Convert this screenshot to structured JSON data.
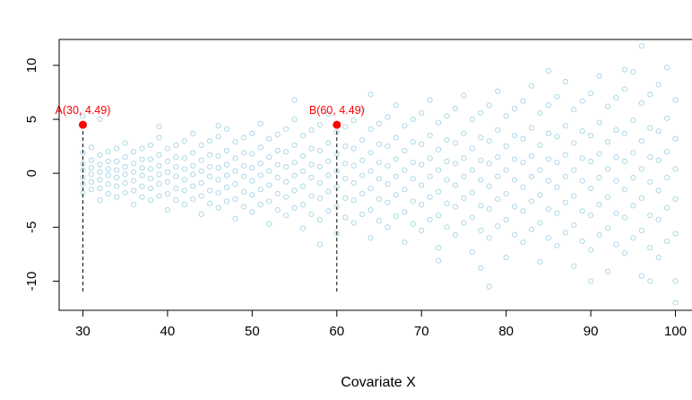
{
  "chart_data": {
    "type": "scatter",
    "title": "",
    "xlabel": "Covariate X",
    "ylabel": "",
    "xlim": [
      27.2,
      102.8
    ],
    "ylim": [
      -12.7,
      12.4
    ],
    "xticks": [
      30,
      40,
      50,
      60,
      70,
      80,
      90,
      100
    ],
    "yticks": [
      -10,
      -5,
      0,
      5,
      10
    ],
    "grid": false,
    "point_color": "#add8e6",
    "marker": "open-circle",
    "points": [
      {
        "x": 30,
        "y": [
          -1.8,
          -1.0,
          -0.4,
          0.3,
          0.9,
          1.9,
          5.3
        ]
      },
      {
        "x": 31,
        "y": [
          -1.5,
          -0.8,
          -0.1,
          0.5,
          1.2,
          2.4
        ]
      },
      {
        "x": 32,
        "y": [
          -2.5,
          -1.4,
          -0.6,
          0.1,
          0.8,
          1.7,
          5.0
        ]
      },
      {
        "x": 33,
        "y": [
          -1.9,
          -1.0,
          -0.2,
          0.4,
          1.1,
          2.0
        ]
      },
      {
        "x": 34,
        "y": [
          -2.2,
          -1.2,
          -0.4,
          0.3,
          1.1,
          2.3
        ]
      },
      {
        "x": 35,
        "y": [
          -1.8,
          -0.9,
          -0.1,
          0.6,
          1.5,
          2.8
        ]
      },
      {
        "x": 36,
        "y": [
          -2.9,
          -1.6,
          -0.7,
          0.1,
          0.9,
          2.0
        ]
      },
      {
        "x": 37,
        "y": [
          -2.2,
          -1.2,
          -0.2,
          0.5,
          1.3,
          2.3
        ]
      },
      {
        "x": 38,
        "y": [
          -2.5,
          -1.4,
          -0.5,
          0.4,
          1.3,
          2.6
        ]
      },
      {
        "x": 39,
        "y": [
          -2.1,
          -1.0,
          -0.1,
          0.7,
          1.7,
          3.3,
          4.3
        ]
      },
      {
        "x": 40,
        "y": [
          -3.4,
          -1.9,
          -0.8,
          0.1,
          1.1,
          2.3
        ]
      },
      {
        "x": 41,
        "y": [
          -2.5,
          -1.4,
          -0.3,
          0.6,
          1.5,
          2.6
        ]
      },
      {
        "x": 42,
        "y": [
          -2.9,
          -1.6,
          -0.6,
          0.4,
          1.4,
          3.0
        ]
      },
      {
        "x": 43,
        "y": [
          -2.4,
          -1.2,
          -0.1,
          0.7,
          1.9,
          3.7
        ]
      },
      {
        "x": 44,
        "y": [
          -3.8,
          -2.1,
          -0.9,
          0.2,
          1.2,
          2.6
        ]
      },
      {
        "x": 45,
        "y": [
          -2.8,
          -1.6,
          -0.3,
          0.6,
          1.7,
          3.0
        ]
      },
      {
        "x": 46,
        "y": [
          -3.2,
          -1.8,
          -0.6,
          0.5,
          1.6,
          3.4,
          4.4
        ]
      },
      {
        "x": 47,
        "y": [
          -2.6,
          -1.3,
          -0.2,
          0.8,
          2.1,
          4.1
        ]
      },
      {
        "x": 48,
        "y": [
          -4.2,
          -2.4,
          -1.0,
          0.2,
          1.4,
          2.9
        ]
      },
      {
        "x": 49,
        "y": [
          -3.1,
          -1.7,
          -0.3,
          0.7,
          1.9,
          3.3
        ]
      },
      {
        "x": 50,
        "y": [
          -3.6,
          -2.0,
          -0.7,
          0.5,
          1.8,
          3.7
        ]
      },
      {
        "x": 51,
        "y": [
          -2.9,
          -1.5,
          -0.2,
          0.9,
          2.4,
          4.6
        ]
      },
      {
        "x": 52,
        "y": [
          -4.7,
          -2.6,
          -1.1,
          0.2,
          1.5,
          3.2
        ]
      },
      {
        "x": 53,
        "y": [
          -3.4,
          -1.9,
          -0.4,
          0.8,
          2.1,
          3.6
        ]
      },
      {
        "x": 54,
        "y": [
          -3.9,
          -2.2,
          -0.8,
          0.6,
          2.0,
          4.1
        ]
      },
      {
        "x": 55,
        "y": [
          -3.2,
          -1.6,
          -0.2,
          1.0,
          2.6,
          5.0,
          6.8
        ]
      },
      {
        "x": 56,
        "y": [
          -5.1,
          -2.9,
          -1.2,
          0.2,
          1.6,
          3.5
        ]
      },
      {
        "x": 57,
        "y": [
          -3.8,
          -2.1,
          -0.4,
          0.8,
          2.3,
          4.0
        ]
      },
      {
        "x": 58,
        "y": [
          -4.3,
          -2.3,
          -0.9,
          0.6,
          2.1,
          4.5,
          -6.6
        ]
      },
      {
        "x": 59,
        "y": [
          -3.5,
          -1.7,
          -0.2,
          1.1,
          2.8,
          5.5
        ]
      },
      {
        "x": 60,
        "y": [
          -5.6,
          -3.1,
          -1.3,
          0.2,
          1.8,
          3.8
        ]
      },
      {
        "x": 61,
        "y": [
          -4.1,
          -2.3,
          -0.5,
          0.9,
          2.5,
          4.3
        ]
      },
      {
        "x": 62,
        "y": [
          -4.6,
          -2.5,
          -0.9,
          0.7,
          2.3,
          4.9
        ]
      },
      {
        "x": 63,
        "y": [
          -3.8,
          -1.9,
          -0.2,
          1.2,
          3.1,
          5.9
        ]
      },
      {
        "x": 64,
        "y": [
          -6.0,
          -3.4,
          -1.4,
          0.2,
          1.9,
          4.1,
          7.3
        ]
      },
      {
        "x": 65,
        "y": [
          -4.4,
          -2.4,
          -0.5,
          1.0,
          2.7,
          4.6
        ]
      },
      {
        "x": 66,
        "y": [
          -5.0,
          -2.7,
          -1.0,
          0.7,
          2.5,
          5.2
        ]
      },
      {
        "x": 67,
        "y": [
          -4.0,
          -2.0,
          -0.3,
          1.3,
          3.3,
          6.3
        ]
      },
      {
        "x": 68,
        "y": [
          -6.4,
          -3.6,
          -1.5,
          0.3,
          2.1,
          4.4
        ]
      },
      {
        "x": 69,
        "y": [
          -4.7,
          -2.6,
          -0.5,
          1.0,
          2.9,
          5.0
        ]
      },
      {
        "x": 70,
        "y": [
          -5.3,
          -2.9,
          -1.1,
          0.8,
          2.7,
          5.6
        ]
      },
      {
        "x": 71,
        "y": [
          -4.3,
          -2.2,
          -0.3,
          1.4,
          3.5,
          6.8
        ]
      },
      {
        "x": 72,
        "y": [
          -6.9,
          -3.9,
          -1.7,
          0.3,
          2.2,
          4.7,
          -8.1
        ]
      },
      {
        "x": 73,
        "y": [
          -5.0,
          -2.8,
          -0.6,
          1.1,
          3.1,
          5.3
        ]
      },
      {
        "x": 74,
        "y": [
          -5.7,
          -3.1,
          -1.1,
          0.9,
          2.8,
          6.0
        ]
      },
      {
        "x": 75,
        "y": [
          -4.6,
          -2.3,
          -0.3,
          1.4,
          3.7,
          7.2
        ]
      },
      {
        "x": 76,
        "y": [
          -7.3,
          -4.1,
          -1.8,
          0.3,
          2.3,
          5.0
        ]
      },
      {
        "x": 77,
        "y": [
          -5.3,
          -3.0,
          -0.6,
          1.2,
          3.3,
          5.6,
          -8.8
        ]
      },
      {
        "x": 78,
        "y": [
          -6.0,
          -3.3,
          -1.2,
          0.9,
          3.0,
          6.3,
          -10.5
        ]
      },
      {
        "x": 79,
        "y": [
          -4.9,
          -2.4,
          -0.3,
          1.5,
          4.0,
          7.6
        ]
      },
      {
        "x": 80,
        "y": [
          -7.8,
          -4.3,
          -1.9,
          0.3,
          2.5,
          5.3
        ]
      },
      {
        "x": 81,
        "y": [
          -5.7,
          -3.1,
          -0.6,
          1.3,
          3.5,
          6.0
        ]
      },
      {
        "x": 82,
        "y": [
          -6.4,
          -3.5,
          -1.3,
          1.0,
          3.2,
          6.7
        ]
      },
      {
        "x": 83,
        "y": [
          -5.2,
          -2.6,
          -0.3,
          1.6,
          4.2,
          8.1
        ]
      },
      {
        "x": 84,
        "y": [
          -8.2,
          -4.6,
          -2.0,
          0.3,
          2.6,
          5.6
        ]
      },
      {
        "x": 85,
        "y": [
          -6.0,
          -3.3,
          -0.7,
          1.3,
          3.7,
          6.3,
          9.5
        ]
      },
      {
        "x": 86,
        "y": [
          -6.7,
          -3.7,
          -1.3,
          1.0,
          3.4,
          7.1
        ]
      },
      {
        "x": 87,
        "y": [
          -5.5,
          -2.7,
          -0.3,
          1.7,
          4.4,
          8.5
        ]
      },
      {
        "x": 88,
        "y": [
          -8.6,
          -4.8,
          -2.1,
          0.3,
          2.8,
          5.9
        ]
      },
      {
        "x": 89,
        "y": [
          -6.3,
          -3.5,
          -0.7,
          1.4,
          3.9,
          6.7
        ]
      },
      {
        "x": 90,
        "y": [
          -7.1,
          -3.9,
          -1.4,
          1.1,
          3.5,
          7.4,
          -10.0
        ]
      },
      {
        "x": 91,
        "y": [
          -5.7,
          -2.9,
          -0.4,
          1.8,
          4.7,
          9.0
        ]
      },
      {
        "x": 92,
        "y": [
          -9.1,
          -5.1,
          -2.2,
          0.4,
          2.9,
          6.2
        ]
      },
      {
        "x": 93,
        "y": [
          -6.6,
          -3.7,
          -0.7,
          1.5,
          4.0,
          7.0
        ]
      },
      {
        "x": 94,
        "y": [
          -7.4,
          -4.1,
          -1.5,
          1.1,
          3.7,
          7.8,
          9.6
        ]
      },
      {
        "x": 95,
        "y": [
          -6.0,
          -3.0,
          -0.4,
          1.9,
          4.9,
          9.4
        ]
      },
      {
        "x": 96,
        "y": [
          -9.5,
          -5.3,
          -2.3,
          0.4,
          3.0,
          6.5,
          11.8
        ]
      },
      {
        "x": 97,
        "y": [
          -6.9,
          -3.9,
          -0.8,
          1.5,
          4.2,
          7.3,
          -10.0
        ]
      },
      {
        "x": 98,
        "y": [
          -7.8,
          -4.3,
          -1.6,
          1.2,
          3.9,
          8.2
        ]
      },
      {
        "x": 99,
        "y": [
          -6.3,
          -3.2,
          -0.4,
          2.0,
          5.1,
          9.8
        ]
      },
      {
        "x": 100,
        "y": [
          -10.0,
          -5.6,
          -2.4,
          0.4,
          3.2,
          6.8,
          -12.0
        ]
      }
    ],
    "annotations": [
      {
        "label": "A(30, 4.49)",
        "x": 30,
        "y": 4.49,
        "line_to_y": -11,
        "color": "#ff0000"
      },
      {
        "label": "B(60, 4.49)",
        "x": 60,
        "y": 4.49,
        "line_to_y": -11,
        "color": "#ff0000"
      }
    ]
  }
}
